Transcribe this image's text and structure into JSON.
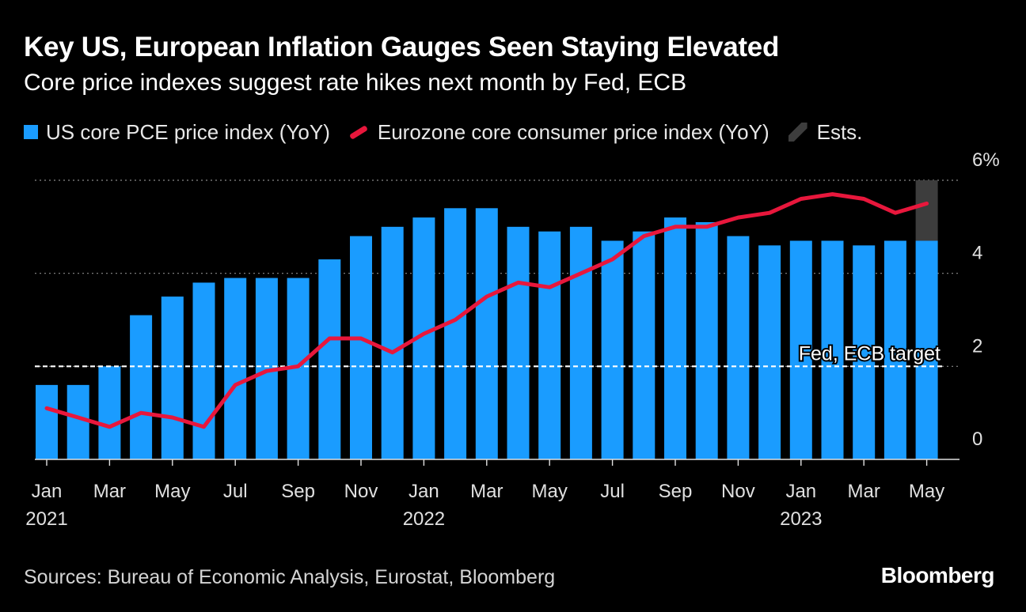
{
  "header": {
    "title": "Key US, European Inflation Gauges Seen Staying Elevated",
    "subtitle": "Core price indexes suggest rate hikes next month by Fed, ECB"
  },
  "legend": {
    "us": "US core PCE price index (YoY)",
    "ez": "Eurozone core consumer price index (YoY)",
    "est": "Ests."
  },
  "colors": {
    "us": "#1a9cff",
    "ez": "#e8173c",
    "est": "#3d3d3d",
    "grid": "#8a8a8a",
    "text": "#ffffff"
  },
  "footer": {
    "source": "Sources: Bureau of Economic Analysis, Eurostat, Bloomberg",
    "brand": "Bloomberg"
  },
  "chart_data": {
    "type": "bar",
    "title": "Key US, European Inflation Gauges Seen Staying Elevated",
    "months": [
      "Jan 2021",
      "Feb 2021",
      "Mar 2021",
      "Apr 2021",
      "May 2021",
      "Jun 2021",
      "Jul 2021",
      "Aug 2021",
      "Sep 2021",
      "Oct 2021",
      "Nov 2021",
      "Dec 2021",
      "Jan 2022",
      "Feb 2022",
      "Mar 2022",
      "Apr 2022",
      "May 2022",
      "Jun 2022",
      "Jul 2022",
      "Aug 2022",
      "Sep 2022",
      "Oct 2022",
      "Nov 2022",
      "Dec 2022",
      "Jan 2023",
      "Feb 2023",
      "Mar 2023",
      "Apr 2023",
      "May 2023"
    ],
    "series": [
      {
        "name": "US core PCE price index (YoY)",
        "kind": "bar",
        "values": [
          1.6,
          1.6,
          2.0,
          3.1,
          3.5,
          3.8,
          3.9,
          3.9,
          3.9,
          4.3,
          4.8,
          5.0,
          5.2,
          5.4,
          5.4,
          5.0,
          4.9,
          5.0,
          4.7,
          4.9,
          5.2,
          5.1,
          4.8,
          4.6,
          4.7,
          4.7,
          4.6,
          4.7,
          4.7
        ]
      },
      {
        "name": "Eurozone core consumer price index (YoY)",
        "kind": "line",
        "values": [
          1.1,
          0.9,
          0.7,
          1.0,
          0.9,
          0.7,
          1.6,
          1.9,
          2.0,
          2.6,
          2.6,
          2.3,
          2.7,
          3.0,
          3.5,
          3.8,
          3.7,
          4.0,
          4.3,
          4.8,
          5.0,
          5.0,
          5.2,
          5.3,
          5.6,
          5.7,
          5.6,
          5.3,
          5.5
        ]
      }
    ],
    "estimate": {
      "label": "Ests.",
      "month": "May 2023",
      "from": 4.7,
      "to": 6.0
    },
    "reference_line": {
      "value": 2,
      "label": "Fed, ECB target"
    },
    "y_ticks": [
      {
        "value": 0,
        "label": "0"
      },
      {
        "value": 2,
        "label": "2"
      },
      {
        "value": 4,
        "label": "4"
      },
      {
        "value": 6,
        "label": "6%"
      }
    ],
    "ylim": [
      0,
      6
    ],
    "x_ticks": [
      {
        "index": 0,
        "month": "Jan",
        "year": "2021"
      },
      {
        "index": 2,
        "month": "Mar",
        "year": ""
      },
      {
        "index": 4,
        "month": "May",
        "year": ""
      },
      {
        "index": 6,
        "month": "Jul",
        "year": ""
      },
      {
        "index": 8,
        "month": "Sep",
        "year": ""
      },
      {
        "index": 10,
        "month": "Nov",
        "year": ""
      },
      {
        "index": 12,
        "month": "Jan",
        "year": "2022"
      },
      {
        "index": 14,
        "month": "Mar",
        "year": ""
      },
      {
        "index": 16,
        "month": "May",
        "year": ""
      },
      {
        "index": 18,
        "month": "Jul",
        "year": ""
      },
      {
        "index": 20,
        "month": "Sep",
        "year": ""
      },
      {
        "index": 22,
        "month": "Nov",
        "year": ""
      },
      {
        "index": 24,
        "month": "Jan",
        "year": "2023"
      },
      {
        "index": 26,
        "month": "Mar",
        "year": ""
      },
      {
        "index": 28,
        "month": "May",
        "year": ""
      }
    ]
  }
}
